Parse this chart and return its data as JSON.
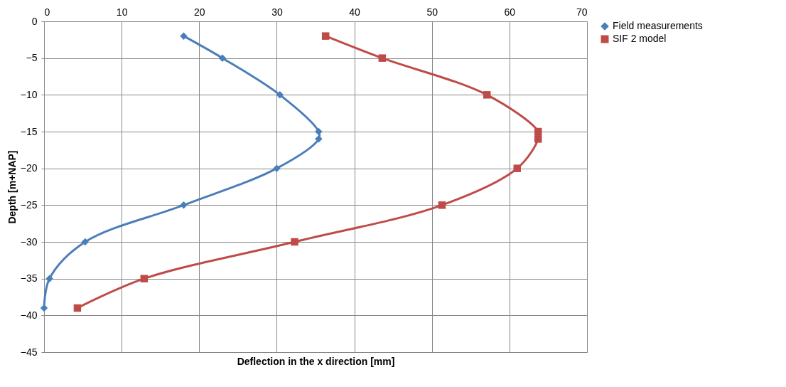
{
  "chart_data": {
    "type": "line",
    "xlabel": "Deflection in the x direction [mm]",
    "ylabel": "Depth [m+NAP]",
    "xlim": [
      0,
      70
    ],
    "xticks": [
      0,
      10,
      20,
      30,
      40,
      50,
      60,
      70
    ],
    "ylim": [
      -45,
      0
    ],
    "yticks": [
      0,
      -5,
      -10,
      -15,
      -20,
      -25,
      -30,
      -35,
      -40,
      -45
    ],
    "grid": true,
    "legend": "right",
    "line_style": "solid",
    "series": [
      {
        "name": "Field measurements",
        "color": "#4a7ebb",
        "marker": "diamond",
        "x": [
          18,
          23,
          30.4,
          35.4,
          35.4,
          30,
          18,
          5.3,
          0.7,
          0
        ],
        "values": [
          -2,
          -5,
          -10,
          -15,
          -16,
          -20,
          -25,
          -30,
          -35,
          -39
        ]
      },
      {
        "name": "SIF 2 model",
        "color": "#be4b48",
        "marker": "square",
        "x": [
          36.3,
          43.6,
          57.1,
          63.7,
          63.7,
          61,
          51.3,
          32.3,
          12.9,
          4.3
        ],
        "values": [
          -2,
          -5,
          -10,
          -15,
          -16,
          -20,
          -25,
          -30,
          -35,
          -39
        ]
      }
    ]
  }
}
